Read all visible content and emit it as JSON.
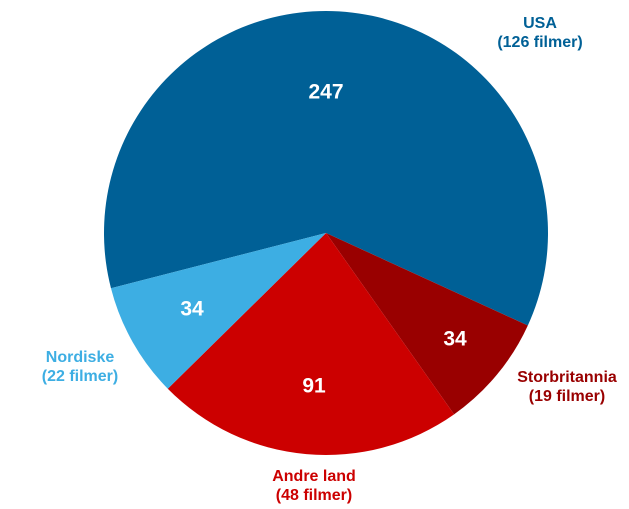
{
  "chart_data": {
    "type": "pie",
    "categories": [
      "USA",
      "Storbritannia",
      "Andre land",
      "Nordiske"
    ],
    "category_notes": [
      "(126 filmer)",
      "(19 filmer)",
      "(48 filmer)",
      "(22 filmer)"
    ],
    "values": [
      247,
      34,
      91,
      34
    ],
    "colors": [
      "#006096",
      "#990000",
      "#cc0000",
      "#3daee3"
    ],
    "startangle": 255.6
  }
}
